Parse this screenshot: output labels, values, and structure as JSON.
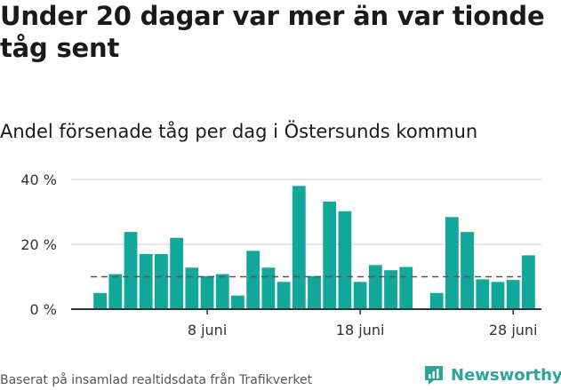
{
  "title": "Under 20 dagar var mer än var tionde tåg sent",
  "footer": "Baserat på insamlad realtidsdata från Trafikverket",
  "logo": {
    "text": "Newsworthy",
    "icon": "newsworthy-logo-icon",
    "color": "#2aa597"
  },
  "colors": {
    "bar": "#12a79b",
    "grid": "#dddddd",
    "axis": "#333333",
    "reference": "#555555"
  },
  "chart_data": {
    "type": "bar",
    "title": "Andel försenade tåg per dag i Östersunds kommun",
    "xlabel": "",
    "ylabel": "",
    "ylim": [
      0,
      40
    ],
    "yticks": [
      0,
      20,
      40
    ],
    "ytick_labels": [
      "0 %",
      "20 %",
      "40 %"
    ],
    "grid": true,
    "xtick_labels": [
      {
        "day": 8,
        "label": "8 juni"
      },
      {
        "day": 18,
        "label": "18 juni"
      },
      {
        "day": 28,
        "label": "28 juni"
      }
    ],
    "reference_line": 10,
    "series": [
      {
        "days": [
          1,
          2,
          3,
          4,
          5,
          6,
          7,
          8,
          9,
          10,
          11,
          12,
          13,
          14,
          15,
          16,
          17,
          18,
          19,
          20,
          21,
          22,
          23,
          24,
          25,
          26,
          27,
          28,
          29
        ],
        "values": [
          5,
          10.8,
          23.8,
          17,
          17,
          22,
          12.8,
          10.2,
          10.8,
          4.2,
          18,
          12.8,
          8.4,
          38,
          10.2,
          33.2,
          30.2,
          8.4,
          13.6,
          12,
          13,
          null,
          5,
          28.4,
          23.8,
          9.2,
          8.4,
          9,
          16.6
        ]
      }
    ]
  }
}
